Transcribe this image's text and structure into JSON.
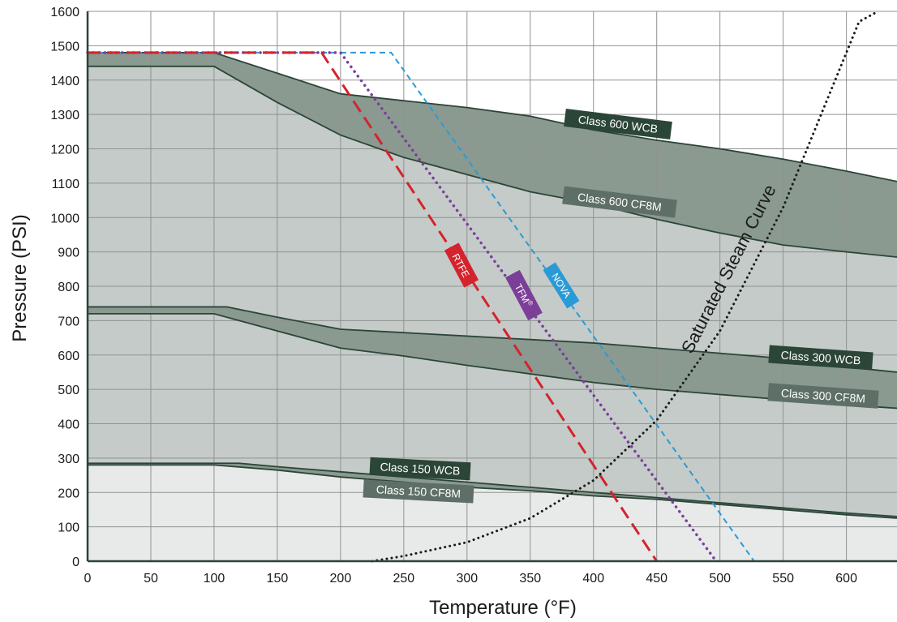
{
  "chart_data": {
    "type": "line",
    "xlabel": "Temperature (°F)",
    "ylabel": "Pressure (PSI)",
    "xlim": [
      0,
      640
    ],
    "ylim": [
      0,
      1600
    ],
    "xticks": [
      0,
      50,
      100,
      150,
      200,
      250,
      300,
      350,
      400,
      450,
      500,
      550,
      600
    ],
    "yticks": [
      0,
      100,
      200,
      300,
      400,
      500,
      600,
      700,
      800,
      900,
      1000,
      1100,
      1200,
      1300,
      1400,
      1500,
      1600
    ],
    "grid": true,
    "colors": {
      "band_dark": "#8a9a90",
      "band_mid": "#c5cbc8",
      "band_light": "#e8eae9",
      "band_edge": "#2b4538",
      "label_dark": "#2b4538",
      "label_mid": "#5d6f66",
      "rtfe": "#d4232d",
      "tfm": "#7b3f98",
      "nova": "#2a9ad7",
      "steam": "#1a1a1a"
    },
    "series": [
      {
        "name": "Class 600 WCB",
        "x": [
          0,
          100,
          150,
          200,
          250,
          300,
          350,
          400,
          450,
          500,
          550,
          600,
          640
        ],
        "y": [
          1480,
          1480,
          1420,
          1360,
          1340,
          1320,
          1295,
          1255,
          1225,
          1200,
          1170,
          1135,
          1105
        ]
      },
      {
        "name": "Class 600 CF8M",
        "x": [
          0,
          100,
          150,
          200,
          250,
          300,
          350,
          400,
          450,
          500,
          550,
          600,
          640
        ],
        "y": [
          1440,
          1440,
          1335,
          1240,
          1175,
          1125,
          1075,
          1040,
          995,
          955,
          920,
          900,
          885
        ]
      },
      {
        "name": "Class 300 WCB",
        "x": [
          0,
          110,
          150,
          200,
          250,
          300,
          350,
          400,
          450,
          500,
          550,
          600,
          640
        ],
        "y": [
          740,
          740,
          710,
          675,
          665,
          655,
          645,
          635,
          620,
          605,
          590,
          565,
          550
        ]
      },
      {
        "name": "Class 300 CF8M",
        "x": [
          0,
          100,
          150,
          200,
          250,
          300,
          350,
          400,
          450,
          500,
          550,
          600,
          640
        ],
        "y": [
          720,
          720,
          670,
          620,
          597,
          570,
          545,
          520,
          500,
          485,
          470,
          455,
          445
        ]
      },
      {
        "name": "Class 150 WCB",
        "x": [
          0,
          120,
          150,
          200,
          250,
          300,
          350,
          400,
          450,
          500,
          550,
          600,
          640
        ],
        "y": [
          285,
          285,
          275,
          260,
          245,
          230,
          215,
          200,
          185,
          170,
          155,
          140,
          130
        ]
      },
      {
        "name": "Class 150 CF8M",
        "x": [
          0,
          100,
          150,
          200,
          250,
          300,
          350,
          400,
          450,
          500,
          550,
          600,
          640
        ],
        "y": [
          280,
          280,
          265,
          245,
          230,
          215,
          205,
          190,
          180,
          165,
          150,
          135,
          125
        ]
      },
      {
        "name": "RTFE",
        "x": [
          0,
          185,
          450
        ],
        "y": [
          1480,
          1480,
          0
        ]
      },
      {
        "name": "TFM",
        "x": [
          0,
          200,
          497
        ],
        "y": [
          1480,
          1480,
          0
        ]
      },
      {
        "name": "NOVA",
        "x": [
          0,
          240,
          527
        ],
        "y": [
          1480,
          1480,
          0
        ]
      },
      {
        "name": "Saturated Steam Curve",
        "x": [
          225,
          250,
          300,
          350,
          400,
          450,
          500,
          550,
          580,
          610,
          625
        ],
        "y": [
          0,
          15,
          55,
          125,
          235,
          410,
          670,
          1030,
          1300,
          1570,
          1600
        ]
      }
    ],
    "labels": {
      "class600wcb": "Class 600 WCB",
      "class600cf8m": "Class 600 CF8M",
      "class300wcb": "Class 300 WCB",
      "class300cf8m": "Class 300 CF8M",
      "class150wcb": "Class 150 WCB",
      "class150cf8m": "Class 150 CF8M",
      "rtfe": "RTFE",
      "tfm": "TFM",
      "tfm_mark": "®",
      "nova": "NOVA",
      "steam": "Saturated Steam Curve"
    }
  }
}
